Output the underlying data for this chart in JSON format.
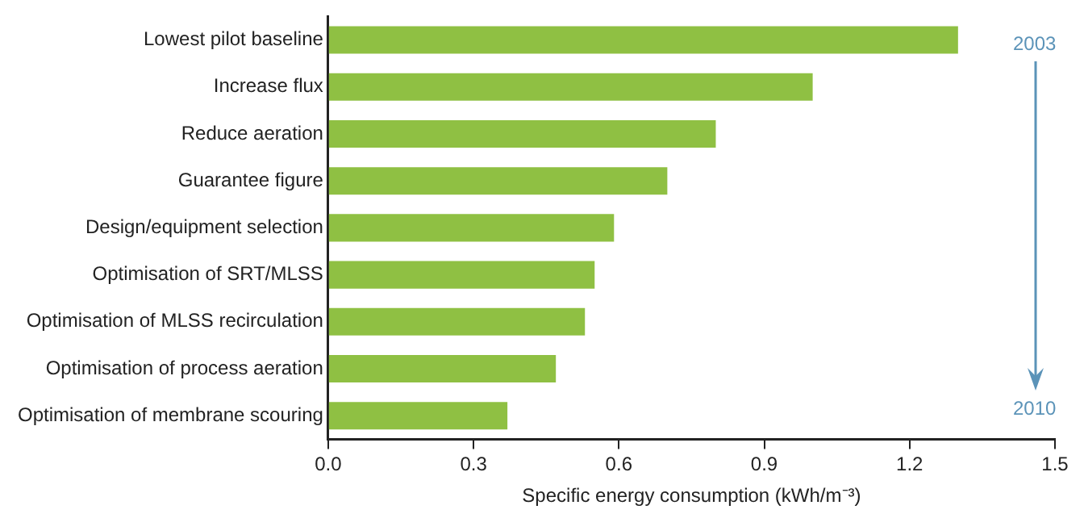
{
  "chart_data": {
    "type": "bar",
    "orientation": "horizontal",
    "categories": [
      "Lowest pilot baseline",
      "Increase flux",
      "Reduce aeration",
      "Guarantee figure",
      "Design/equipment selection",
      "Optimisation of SRT/MLSS",
      "Optimisation of MLSS recirculation",
      "Optimisation of process aeration",
      "Optimisation of membrane scouring"
    ],
    "values": [
      1.3,
      1.0,
      0.8,
      0.7,
      0.59,
      0.55,
      0.53,
      0.47,
      0.37
    ],
    "color": "#8fc043",
    "xlim": [
      0,
      1.5
    ],
    "xticks": [
      {
        "value": 0,
        "label": "0.0"
      },
      0.3,
      0.6,
      0.9,
      1.2,
      1.5
    ],
    "xlabel": "Specific energy consumption (kWh/m⁻³)",
    "annotations": [
      "2003",
      "2010"
    ],
    "grid": false,
    "legend": false
  }
}
